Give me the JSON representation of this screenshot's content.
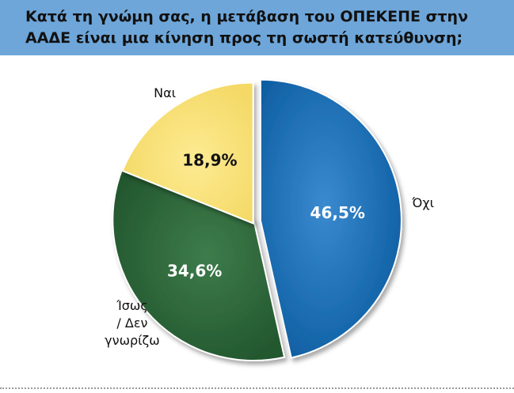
{
  "title_lines": [
    "Κατά τη γνώμη σας, η μετάβαση του ΟΠΕΚΕΠΕ στην",
    "ΑΑΔΕ είναι μια κίνηση προς τη σωστή κατεύθυνση;"
  ],
  "colors": {
    "header": "#6ea6d9",
    "no": "#1a71b8",
    "maybe": "#2f6a3c",
    "yes": "#fbe37a"
  },
  "chart_data": {
    "type": "pie",
    "title": "Κατά τη γνώμη σας, η μετάβαση του ΟΠΕΚΕΠΕ στην ΑΑΔΕ είναι μια κίνηση προς τη σωστή κατεύθυνση;",
    "slices": [
      {
        "label": "Όχι",
        "value": 46.5,
        "value_label": "46,5%",
        "color": "#1a71b8",
        "exploded": true
      },
      {
        "label": "Ίσως / Δεν γνωρίζω",
        "label_lines": [
          "Ίσως",
          "/ Δεν",
          "γνωρίζω"
        ],
        "value": 34.6,
        "value_label": "34,6%",
        "color": "#2f6a3c",
        "exploded": false
      },
      {
        "label": "Ναι",
        "value": 18.9,
        "value_label": "18,9%",
        "color": "#fbe37a",
        "exploded": false
      }
    ],
    "start": "12 o'clock, clockwise",
    "legend": "none (labels beside slices)"
  }
}
